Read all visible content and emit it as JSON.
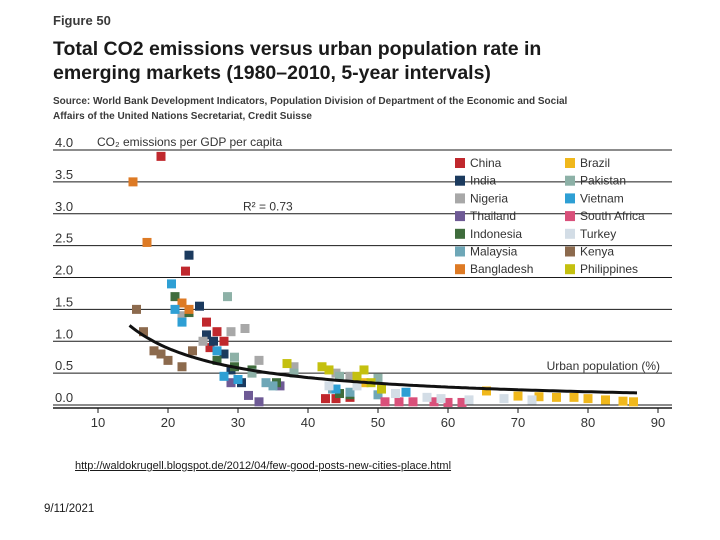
{
  "figure_label": "Figure 50",
  "title_line1": "Total CO2 emissions versus urban population rate in",
  "title_line2": "emerging markets (1980–2010, 5-year intervals)",
  "source_line1": "Source: World Bank Development Indicators, Population Division of Department of the Economic and Social",
  "source_line2": "Affairs of the United Nations Secretariat, Credit Suisse",
  "link_text": "http://waldokrugell.blogspot.de/2012/04/few-good-posts-new-cities-place.html",
  "date_text": "9/11/2021",
  "chart_data": {
    "type": "scatter",
    "ylabel": "CO₂ emissions per GDP per capita",
    "xlabel": "Urban population (%)",
    "annotation": "R² = 0.73",
    "xlim": [
      10,
      90
    ],
    "ylim": [
      0,
      4
    ],
    "x_ticks": [
      "10",
      "20",
      "30",
      "40",
      "50",
      "60",
      "70",
      "80",
      "90"
    ],
    "y_ticks": [
      "0.0",
      "0.5",
      "1.0",
      "1.5",
      "2.0",
      "2.5",
      "3.0",
      "3.5",
      "4.0"
    ],
    "trend": {
      "model": "power",
      "a": 20.7,
      "b": -1.05
    },
    "series": [
      {
        "name": "China",
        "color": "#c0282d",
        "points": [
          [
            19,
            3.9
          ],
          [
            22.5,
            2.1
          ],
          [
            25.5,
            1.3
          ],
          [
            27,
            1.15
          ],
          [
            28,
            1.0
          ],
          [
            26,
            0.9
          ],
          [
            42.5,
            0.1
          ],
          [
            44,
            0.1
          ],
          [
            46,
            0.12
          ]
        ]
      },
      {
        "name": "India",
        "color": "#1b3a5e",
        "points": [
          [
            23,
            2.35
          ],
          [
            24.5,
            1.55
          ],
          [
            25.5,
            1.1
          ],
          [
            26.5,
            1.0
          ],
          [
            28,
            0.8
          ],
          [
            29,
            0.55
          ],
          [
            30.5,
            0.35
          ]
        ]
      },
      {
        "name": "Nigeria",
        "color": "#a8a8a8",
        "points": [
          [
            22,
            1.4
          ],
          [
            25,
            1.0
          ],
          [
            29,
            1.15
          ],
          [
            31,
            1.2
          ],
          [
            33,
            0.7
          ],
          [
            38,
            0.6
          ],
          [
            44,
            0.5
          ],
          [
            46,
            0.45
          ]
        ]
      },
      {
        "name": "Thailand",
        "color": "#6e5a95",
        "points": [
          [
            29,
            0.35
          ],
          [
            31.5,
            0.15
          ],
          [
            33,
            0.05
          ],
          [
            36,
            0.3
          ]
        ]
      },
      {
        "name": "Indonesia",
        "color": "#3f6c3c",
        "points": [
          [
            21,
            1.7
          ],
          [
            23,
            1.45
          ],
          [
            27,
            0.7
          ],
          [
            29.5,
            0.6
          ],
          [
            32,
            0.55
          ],
          [
            35.5,
            0.35
          ],
          [
            44.5,
            0.18
          ],
          [
            46,
            0.16
          ]
        ]
      },
      {
        "name": "Malaysia",
        "color": "#6ea7b7",
        "points": [
          [
            34,
            0.35
          ],
          [
            35,
            0.3
          ],
          [
            43.5,
            0.25
          ],
          [
            46,
            0.2
          ],
          [
            50,
            0.16
          ]
        ]
      },
      {
        "name": "Bangladesh",
        "color": "#dd7a24",
        "points": [
          [
            15,
            3.5
          ],
          [
            17,
            2.55
          ],
          [
            22,
            1.6
          ],
          [
            23,
            1.5
          ]
        ]
      },
      {
        "name": "Brazil",
        "color": "#f0b81c",
        "points": [
          [
            48,
            0.35
          ],
          [
            65.5,
            0.22
          ],
          [
            70,
            0.14
          ],
          [
            73,
            0.13
          ],
          [
            75.5,
            0.12
          ],
          [
            78,
            0.12
          ],
          [
            80,
            0.1
          ],
          [
            82.5,
            0.08
          ],
          [
            85,
            0.06
          ],
          [
            86.5,
            0.05
          ]
        ]
      },
      {
        "name": "Pakistan",
        "color": "#8db1a7",
        "points": [
          [
            28.5,
            1.7
          ],
          [
            29.5,
            0.75
          ],
          [
            32,
            0.5
          ],
          [
            38,
            0.5
          ],
          [
            44.5,
            0.45
          ],
          [
            50,
            0.42
          ]
        ]
      },
      {
        "name": "Vietnam",
        "color": "#2e9fd4",
        "points": [
          [
            20.5,
            1.9
          ],
          [
            21,
            1.5
          ],
          [
            22,
            1.3
          ],
          [
            27,
            0.85
          ],
          [
            28,
            0.45
          ],
          [
            30,
            0.4
          ],
          [
            44,
            0.25
          ],
          [
            54,
            0.2
          ]
        ]
      },
      {
        "name": "South Africa",
        "color": "#d9507a",
        "points": [
          [
            51,
            0.05
          ],
          [
            53,
            0.05
          ],
          [
            55,
            0.05
          ],
          [
            58,
            0.05
          ],
          [
            60,
            0.04
          ],
          [
            62,
            0.04
          ]
        ]
      },
      {
        "name": "Turkey",
        "color": "#d3dde6",
        "points": [
          [
            43,
            0.3
          ],
          [
            47,
            0.3
          ],
          [
            52.5,
            0.18
          ],
          [
            57,
            0.12
          ],
          [
            59,
            0.1
          ],
          [
            63,
            0.08
          ],
          [
            68,
            0.1
          ],
          [
            72,
            0.08
          ]
        ]
      },
      {
        "name": "Kenya",
        "color": "#8c6a4d",
        "points": [
          [
            15.5,
            1.5
          ],
          [
            16.5,
            1.15
          ],
          [
            18,
            0.85
          ],
          [
            19,
            0.8
          ],
          [
            20,
            0.7
          ],
          [
            22,
            0.6
          ],
          [
            23.5,
            0.85
          ]
        ]
      },
      {
        "name": "Philippines",
        "color": "#c4c00f",
        "points": [
          [
            37,
            0.65
          ],
          [
            42,
            0.6
          ],
          [
            43,
            0.55
          ],
          [
            47,
            0.45
          ],
          [
            48,
            0.55
          ],
          [
            49,
            0.35
          ],
          [
            50.5,
            0.25
          ]
        ]
      }
    ]
  }
}
